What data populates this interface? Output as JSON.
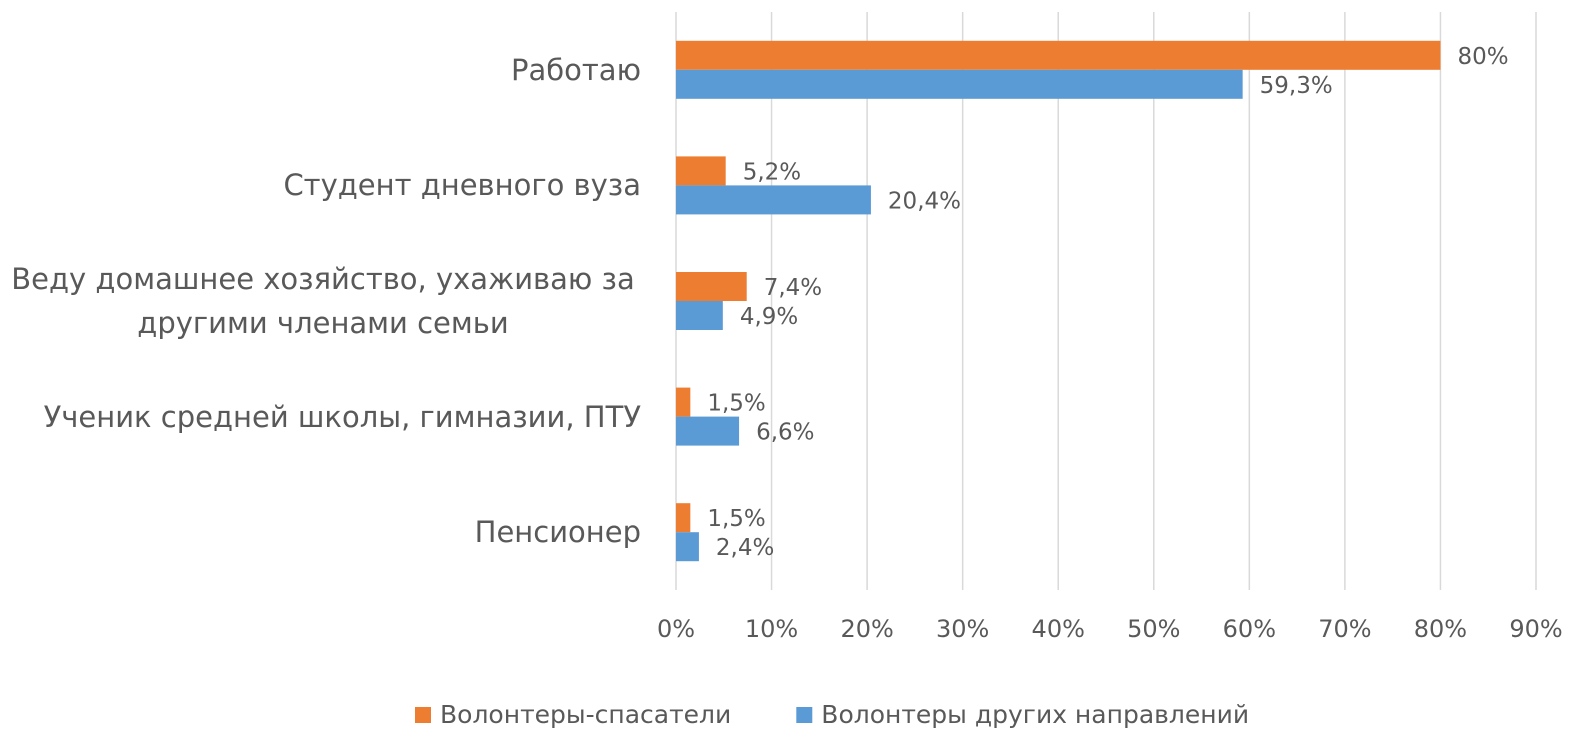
{
  "chart_data": {
    "type": "hbar",
    "categories": [
      "Работаю",
      "Студент дневного вуза",
      "Веду домашнее хозяйство, ухаживаю за другими членами семьи",
      "Ученик средней школы, гимназии, ПТУ",
      "Пенсионер"
    ],
    "series": [
      {
        "name": "Волонтеры-спасатели",
        "color": "#ed7d31",
        "values": [
          80,
          5.2,
          7.4,
          1.5,
          1.5
        ],
        "value_labels": [
          "80%",
          "5,2%",
          "7,4%",
          "1,5%",
          "1,5%"
        ]
      },
      {
        "name": "Волонтеры других направлений",
        "color": "#5b9bd5",
        "values": [
          59.3,
          20.4,
          4.9,
          6.6,
          2.4
        ],
        "value_labels": [
          "59,3%",
          "20,4%",
          "4,9%",
          "6,6%",
          "2,4%"
        ]
      }
    ],
    "xlim": [
      0,
      90
    ],
    "xticks": [
      {
        "value": 0,
        "label": "0%"
      },
      {
        "value": 10,
        "label": "10%"
      },
      {
        "value": 20,
        "label": "20%"
      },
      {
        "value": 30,
        "label": "30%"
      },
      {
        "value": 40,
        "label": "40%"
      },
      {
        "value": 50,
        "label": "50%"
      },
      {
        "value": 60,
        "label": "60%"
      },
      {
        "value": 70,
        "label": "70%"
      },
      {
        "value": 80,
        "label": "80%"
      },
      {
        "value": 90,
        "label": "90%"
      }
    ],
    "grid": true,
    "legend": "bottom"
  }
}
